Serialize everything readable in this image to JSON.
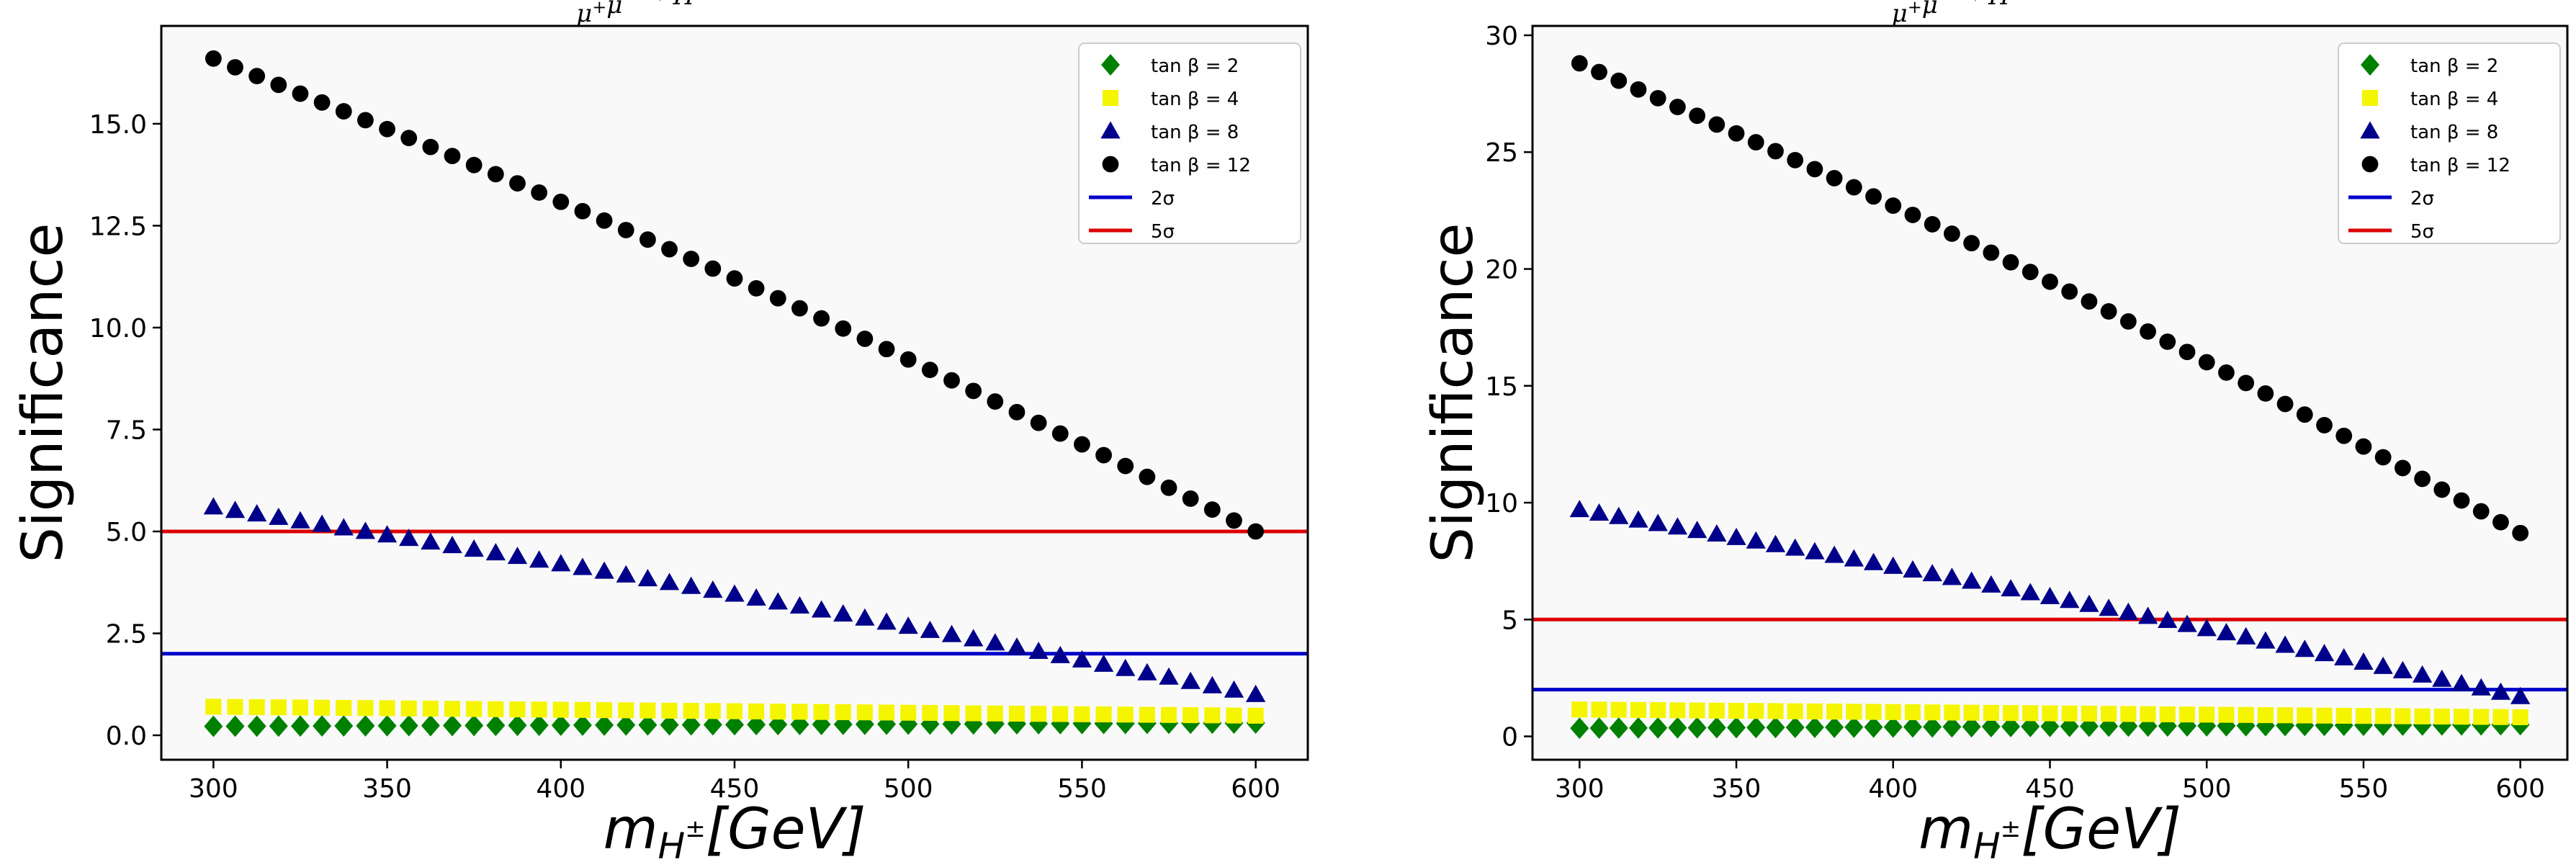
{
  "chart_data": [
    {
      "type": "scatter",
      "title": "μ⁺μ⁻ → H⁺H⁻ → W^± W^∓ Zh",
      "xlabel": "m_{H^±}[GeV]",
      "ylabel": "Significance",
      "xlim": [
        285,
        615
      ],
      "ylim": [
        -0.6,
        17.4
      ],
      "xticks": [
        300,
        350,
        400,
        450,
        500,
        550,
        600
      ],
      "yticks": [
        0.0,
        2.5,
        5.0,
        7.5,
        10.0,
        12.5,
        15.0
      ],
      "ytick_labels": [
        "0.0",
        "2.5",
        "5.0",
        "7.5",
        "10.0",
        "12.5",
        "15.0"
      ],
      "legend_position": "top-right",
      "mass_range": [
        300,
        600
      ],
      "mass_step": 6.25,
      "series": [
        {
          "name": "tan β = 2",
          "marker": "diamond",
          "color": "#008000",
          "y_at_300": 0.22,
          "y_at_600": 0.3
        },
        {
          "name": "tan β = 4",
          "marker": "square",
          "color": "#f5f500",
          "y_at_300": 0.7,
          "y_at_600": 0.48
        },
        {
          "name": "tan β = 8",
          "marker": "triangle",
          "color": "#00008b",
          "y_at_300": 5.6,
          "y_at_600": 1.0
        },
        {
          "name": "tan β = 12",
          "marker": "circle",
          "color": "#000000",
          "y_at_300": 16.6,
          "y_at_600": 5.0
        }
      ],
      "hlines": [
        {
          "name": "2σ",
          "y": 2.0,
          "color": "#0000cc"
        },
        {
          "name": "5σ",
          "y": 5.0,
          "color": "#dd0000"
        }
      ]
    },
    {
      "type": "scatter",
      "title": "μ⁺μ⁻ → H⁺H⁻ → W^± W^∓ Zh",
      "xlabel": "m_{H^±}[GeV]",
      "ylabel": "Significance",
      "xlim": [
        285,
        615
      ],
      "ylim": [
        -1.0,
        30.4
      ],
      "xticks": [
        300,
        350,
        400,
        450,
        500,
        550,
        600
      ],
      "yticks": [
        0,
        5,
        10,
        15,
        20,
        25,
        30
      ],
      "ytick_labels": [
        "0",
        "5",
        "10",
        "15",
        "20",
        "25",
        "30"
      ],
      "legend_position": "top-right",
      "mass_range": [
        300,
        600
      ],
      "mass_step": 6.25,
      "series": [
        {
          "name": "tan β = 2",
          "marker": "diamond",
          "color": "#008000",
          "y_at_300": 0.35,
          "y_at_600": 0.5
        },
        {
          "name": "tan β = 4",
          "marker": "square",
          "color": "#f5f500",
          "y_at_300": 1.15,
          "y_at_600": 0.82
        },
        {
          "name": "tan β = 8",
          "marker": "triangle",
          "color": "#00008b",
          "y_at_300": 9.7,
          "y_at_600": 1.7
        },
        {
          "name": "tan β = 12",
          "marker": "circle",
          "color": "#000000",
          "y_at_300": 28.8,
          "y_at_600": 8.7
        }
      ],
      "hlines": [
        {
          "name": "2σ",
          "y": 2.0,
          "color": "#0000cc"
        },
        {
          "name": "5σ",
          "y": 5.0,
          "color": "#dd0000"
        }
      ]
    }
  ]
}
